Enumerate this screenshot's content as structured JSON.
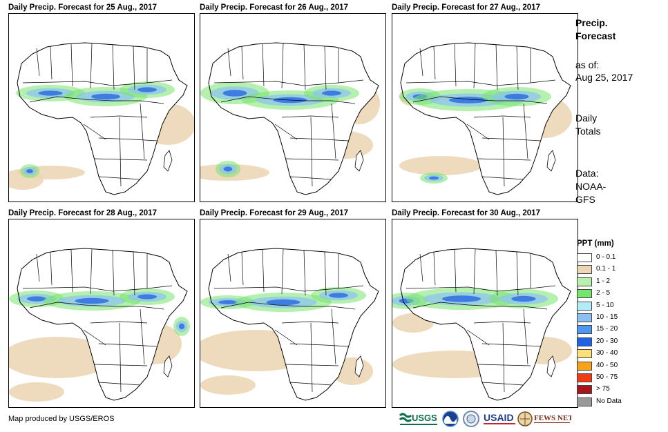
{
  "panels": [
    {
      "title": "Daily Precip. Forecast for 25 Aug., 2017"
    },
    {
      "title": "Daily Precip. Forecast for 26 Aug., 2017"
    },
    {
      "title": "Daily Precip. Forecast for 27 Aug., 2017"
    },
    {
      "title": "Daily Precip. Forecast for 28 Aug., 2017"
    },
    {
      "title": "Daily Precip. Forecast for 29 Aug., 2017"
    },
    {
      "title": "Daily Precip. Forecast for 30 Aug., 2017"
    }
  ],
  "sidebar": {
    "title_line1": "Precip.",
    "title_line2": "Forecast",
    "asof_line1": "as of:",
    "asof_line2": "Aug 25, 2017",
    "totals_line1": "Daily",
    "totals_line2": "Totals",
    "data_line1": "Data:",
    "data_line2": "NOAA-",
    "data_line3": "GFS"
  },
  "legend": {
    "title": "PPT (mm)",
    "items": [
      {
        "label": "0 - 0.1",
        "color": "#ffffff"
      },
      {
        "label": "0.1 - 1",
        "color": "#ecd6b6"
      },
      {
        "label": "1 - 2",
        "color": "#b7f1ad"
      },
      {
        "label": "2 - 5",
        "color": "#76e46c"
      },
      {
        "label": "5 - 10",
        "color": "#b3ecf7"
      },
      {
        "label": "10 - 15",
        "color": "#8cc0f3"
      },
      {
        "label": "15 - 20",
        "color": "#4d98ee"
      },
      {
        "label": "20 - 30",
        "color": "#1f62e3"
      },
      {
        "label": "30 - 40",
        "color": "#fbe07a"
      },
      {
        "label": "40 - 50",
        "color": "#f5a21d"
      },
      {
        "label": "50 - 75",
        "color": "#f03c12"
      },
      {
        "label": "> 75",
        "color": "#a8151a"
      },
      {
        "label": "No Data",
        "color": "#9a9a9a"
      }
    ]
  },
  "credit": "Map produced by USGS/EROS",
  "logos": {
    "usgs": "USGS",
    "usaid": "USAID",
    "fews": "FEWS NET"
  }
}
